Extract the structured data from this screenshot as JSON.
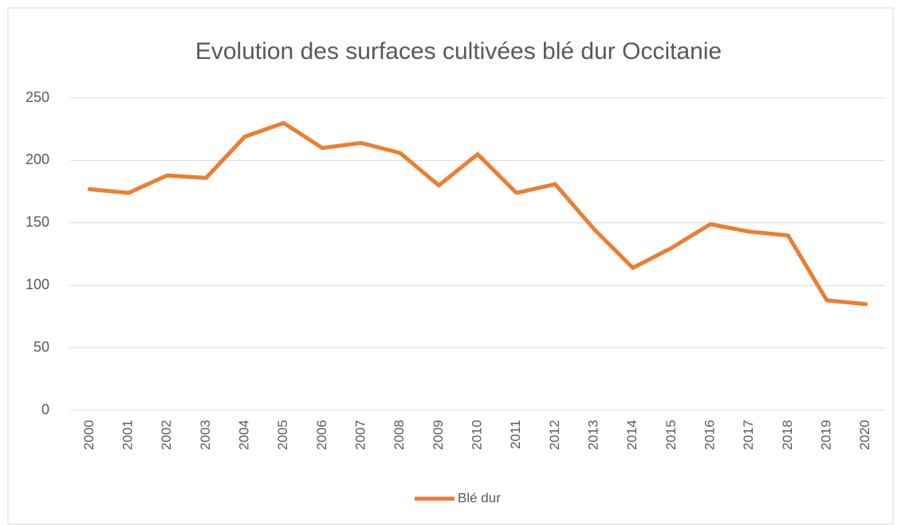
{
  "chart_data": {
    "type": "line",
    "title": "Evolution des surfaces cultivées blé dur Occitanie",
    "categories": [
      "2000",
      "2001",
      "2002",
      "2003",
      "2004",
      "2005",
      "2006",
      "2007",
      "2008",
      "2009",
      "2010",
      "2011",
      "2012",
      "2013",
      "2014",
      "2015",
      "2016",
      "2017",
      "2018",
      "2019",
      "2020"
    ],
    "series": [
      {
        "name": "Blé dur",
        "color": "#ed7d31",
        "values": [
          177,
          174,
          188,
          186,
          219,
          230,
          210,
          214,
          206,
          180,
          205,
          174,
          181,
          145,
          114,
          130,
          149,
          143,
          140,
          88,
          85
        ]
      }
    ],
    "ylim": [
      0,
      250
    ],
    "yticks": [
      0,
      50,
      100,
      150,
      200,
      250
    ],
    "grid": true,
    "legend": "bottom"
  }
}
